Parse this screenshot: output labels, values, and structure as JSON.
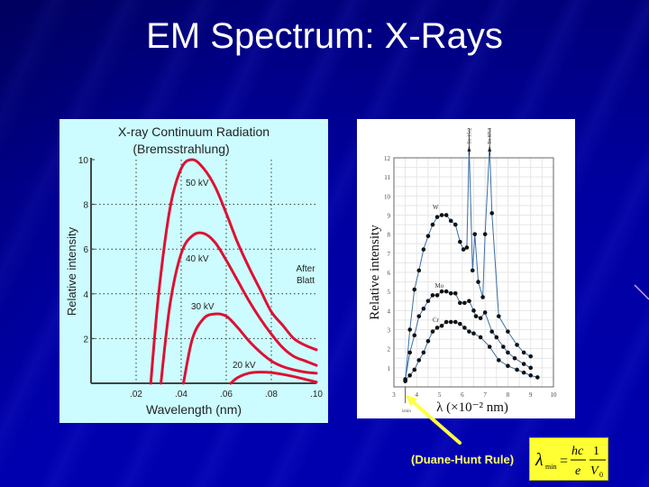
{
  "slide": {
    "title": "EM Spectrum: X-Rays",
    "caption": "(Duane-Hunt Rule)",
    "formula": {
      "lhs": "λ",
      "lhs_sub": "min",
      "equals": "=",
      "frac1_num": "hc",
      "frac1_den": "e",
      "frac2_num": "1",
      "frac2_den": "V",
      "frac2_den_sub": "0"
    },
    "colors": {
      "background": "#0000a8",
      "title": "#ffffff",
      "caption": "#ffff66",
      "formula_bg": "#ffff33",
      "arrow": "#ffff44",
      "left_panel_bg": "#ccfcff",
      "curve_red": "#dd1133"
    }
  },
  "chart_data": [
    {
      "type": "line",
      "title": "X-ray Continuum Radiation",
      "subtitle": "(Bremsstrahlung)",
      "xlabel": "Wavelength (nm)",
      "ylabel": "Relative intensity",
      "xlim": [
        0,
        0.1
      ],
      "ylim": [
        0,
        10
      ],
      "x_ticks": [
        ".02",
        ".04",
        ".06",
        ".08",
        ".10"
      ],
      "y_ticks": [
        "2",
        "4",
        "6",
        "8",
        "10"
      ],
      "grid": "dotted",
      "annotation": "After Blatt",
      "series": [
        {
          "name": "50 kV",
          "x": [
            0.0265,
            0.03,
            0.035,
            0.04,
            0.045,
            0.05,
            0.055,
            0.06,
            0.065,
            0.07,
            0.075,
            0.08,
            0.085,
            0.09,
            0.095,
            0.1
          ],
          "values": [
            0,
            4.0,
            7.8,
            9.6,
            10.0,
            9.6,
            8.8,
            7.6,
            6.3,
            5.2,
            4.2,
            3.2,
            2.6,
            2.0,
            1.7,
            1.5
          ]
        },
        {
          "name": "40 kV",
          "x": [
            0.031,
            0.035,
            0.04,
            0.045,
            0.05,
            0.055,
            0.06,
            0.065,
            0.07,
            0.075,
            0.08,
            0.085,
            0.09,
            0.095,
            0.1
          ],
          "values": [
            0,
            3.5,
            5.8,
            6.6,
            6.7,
            6.3,
            5.5,
            4.6,
            3.7,
            2.9,
            2.2,
            1.6,
            1.2,
            1.0,
            0.8
          ]
        },
        {
          "name": "30 kV",
          "x": [
            0.041,
            0.045,
            0.05,
            0.055,
            0.06,
            0.065,
            0.07,
            0.075,
            0.08,
            0.085,
            0.09,
            0.095,
            0.1
          ],
          "values": [
            0,
            2.0,
            2.9,
            3.1,
            3.0,
            2.5,
            1.9,
            1.4,
            1.0,
            0.75,
            0.6,
            0.5,
            0.45
          ]
        },
        {
          "name": "20 kV",
          "x": [
            0.062,
            0.065,
            0.07,
            0.075,
            0.08,
            0.085,
            0.09,
            0.095,
            0.1
          ],
          "values": [
            0,
            0.25,
            0.45,
            0.5,
            0.48,
            0.4,
            0.3,
            0.18,
            0.05
          ]
        }
      ]
    },
    {
      "type": "line",
      "title": "",
      "xlabel": "λ (×10⁻² nm)",
      "ylabel": "Relative intensity",
      "xlim": [
        3,
        10
      ],
      "ylim": [
        0,
        12
      ],
      "x_ticks": [
        "3",
        "4",
        "5",
        "6",
        "7",
        "8",
        "9",
        "10"
      ],
      "y_ticks": [
        "1",
        "2",
        "3",
        "4",
        "5",
        "6",
        "7",
        "8",
        "9",
        "10",
        "11",
        "12"
      ],
      "grid": "solid-light",
      "x_marker": {
        "label": "λmin",
        "x": 3.5
      },
      "peak_annotations": [
        {
          "label": "To 15.2",
          "x": 6.3
        },
        {
          "label": "To 87.3",
          "x": 7.2
        }
      ],
      "series": [
        {
          "name": "W",
          "x": [
            3.5,
            3.7,
            3.9,
            4.1,
            4.3,
            4.5,
            4.7,
            4.9,
            5.1,
            5.3,
            5.5,
            5.7,
            5.9,
            6.05,
            6.2,
            6.3,
            6.45,
            6.55,
            6.7,
            6.9,
            7.0,
            7.2,
            7.3,
            7.6,
            8.0,
            8.4,
            8.7,
            9.0
          ],
          "values": [
            0.3,
            3.0,
            5.1,
            6.1,
            7.2,
            7.9,
            8.5,
            8.9,
            9.0,
            9.0,
            8.7,
            8.5,
            7.6,
            7.2,
            7.3,
            15.2,
            6.1,
            8.0,
            5.5,
            4.7,
            8.0,
            87.3,
            9.1,
            3.7,
            2.9,
            2.2,
            1.8,
            1.6
          ]
        },
        {
          "name": "Mo",
          "x": [
            3.5,
            3.7,
            3.9,
            4.1,
            4.3,
            4.5,
            4.7,
            4.9,
            5.1,
            5.3,
            5.5,
            5.7,
            5.9,
            6.1,
            6.3,
            6.5,
            6.6,
            6.8,
            7.0,
            7.3,
            7.5,
            7.8,
            8.0,
            8.3,
            8.7,
            9.0
          ],
          "values": [
            0.4,
            1.8,
            2.7,
            3.7,
            4.1,
            4.5,
            4.8,
            4.8,
            5.0,
            5.0,
            4.9,
            4.9,
            4.4,
            4.4,
            4.5,
            4.0,
            3.7,
            3.6,
            3.9,
            2.9,
            2.6,
            2.1,
            1.8,
            1.5,
            1.2,
            1.0
          ]
        },
        {
          "name": "Cr",
          "x": [
            3.5,
            3.7,
            3.9,
            4.1,
            4.3,
            4.5,
            4.7,
            4.9,
            5.1,
            5.3,
            5.5,
            5.7,
            5.9,
            6.1,
            6.3,
            6.5,
            6.8,
            7.2,
            7.6,
            8.0,
            8.4,
            8.7,
            9.0,
            9.3
          ],
          "values": [
            0.35,
            0.6,
            0.9,
            1.4,
            1.8,
            2.4,
            2.9,
            3.1,
            3.2,
            3.4,
            3.4,
            3.4,
            3.3,
            3.1,
            2.9,
            2.8,
            2.6,
            2.1,
            1.4,
            1.1,
            0.9,
            0.75,
            0.6,
            0.5
          ]
        }
      ]
    }
  ]
}
